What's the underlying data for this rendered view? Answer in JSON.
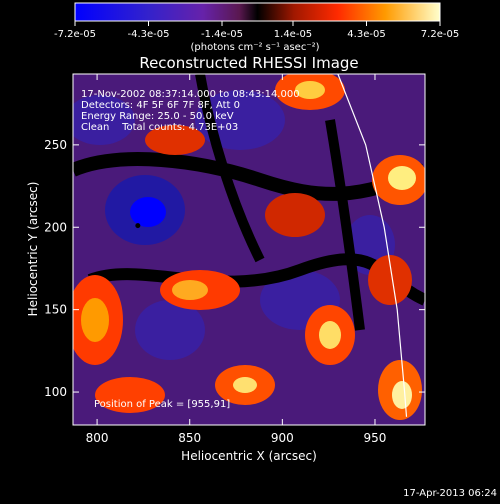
{
  "chart_data": {
    "type": "heatmap",
    "title": "Reconstructed RHESSI Image",
    "xlabel": "Heliocentric X (arcsec)",
    "ylabel": "Heliocentric Y (arcsec)",
    "xlim": [
      787,
      977
    ],
    "ylim": [
      80,
      293
    ],
    "x_ticks": [
      800,
      850,
      900,
      950
    ],
    "y_ticks": [
      100,
      150,
      200,
      250
    ],
    "colorbar": {
      "range": [
        -7.2e-05,
        7.2e-05
      ],
      "tick_values": [
        -7.2e-05,
        -4.3e-05,
        -1.4e-05,
        1.4e-05,
        4.3e-05,
        7.2e-05
      ],
      "tick_labels": [
        "-7.2e-05",
        "-4.3e-05",
        "-1.4e-05",
        "1.4e-05",
        "4.3e-05",
        "7.2e-05"
      ],
      "units_label": "(photons cm⁻² s⁻¹ asec⁻²)"
    },
    "annotations": {
      "line1": "17-Nov-2002 08:37:14.000 to 08:43:14.000",
      "line2": "Detectors: 4F 5F 6F 7F 8F, Att 0",
      "line3": "Energy Range: 25.0 - 50.0 keV",
      "line4": "Clean    Total counts: 4.73E+03",
      "peak": "Position of Peak = [955,91]"
    },
    "peak": {
      "x": 955,
      "y": 91
    },
    "limb_arc": [
      [
        930,
        293
      ],
      [
        945,
        250
      ],
      [
        955,
        200
      ],
      [
        962,
        150
      ],
      [
        966,
        100
      ],
      [
        967,
        85
      ]
    ],
    "marker": {
      "x": 822,
      "y": 201
    },
    "footer_date": "17-Apr-2013 06:24",
    "grid": false
  }
}
